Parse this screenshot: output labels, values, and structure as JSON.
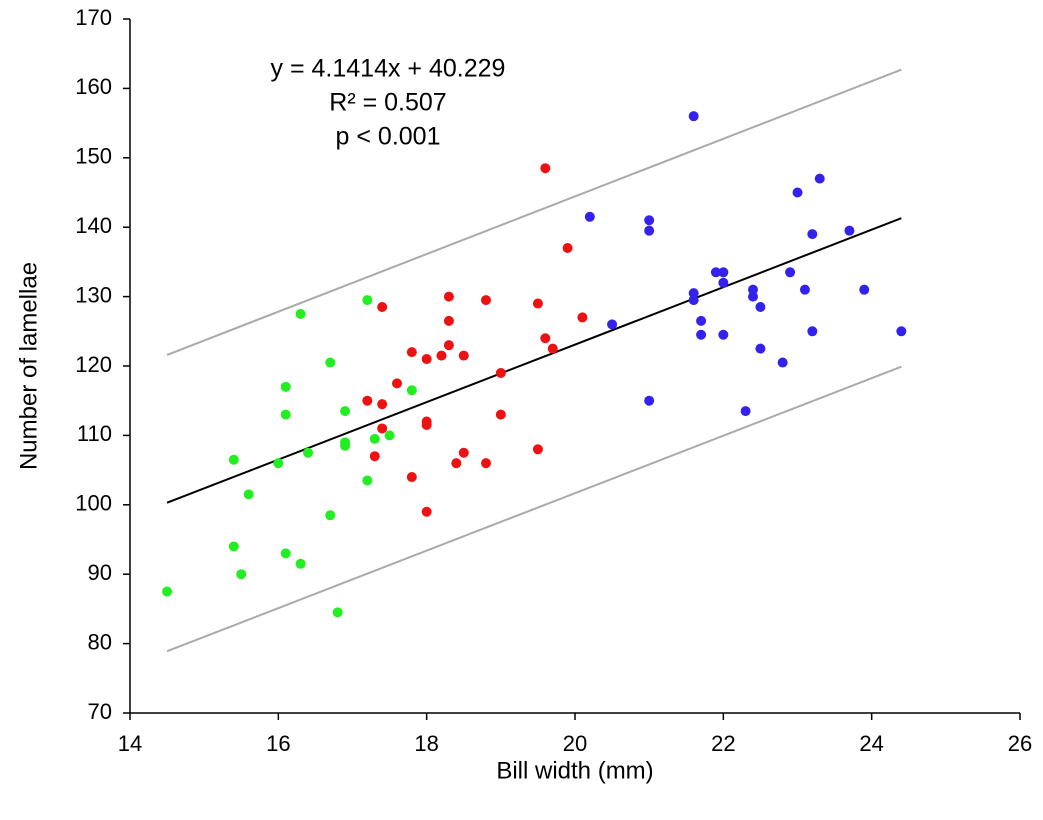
{
  "chart_data": {
    "type": "scatter",
    "xlabel": "Bill width (mm)",
    "ylabel": "Number of lamellae",
    "xlim": [
      14,
      26
    ],
    "xticks": [
      14,
      16,
      18,
      20,
      22,
      24,
      26
    ],
    "ylim": [
      70,
      170
    ],
    "yticks": [
      70,
      80,
      90,
      100,
      110,
      120,
      130,
      140,
      150,
      160,
      170
    ],
    "annotations": [
      "y = 4.1414x + 40.229",
      "R² = 0.507",
      "p < 0.001"
    ],
    "series": [
      {
        "color": "#22ee22",
        "x": [
          14.5,
          15.4,
          15.4,
          15.5,
          15.6,
          16.0,
          16.1,
          16.1,
          16.1,
          16.3,
          16.3,
          16.4,
          16.7,
          16.7,
          16.8,
          16.9,
          16.9,
          16.9,
          17.2,
          17.2,
          17.3,
          17.5,
          17.8
        ],
        "values": [
          87.5,
          106.5,
          94,
          90,
          101.5,
          106,
          117,
          113,
          93,
          127.5,
          91.5,
          107.5,
          120.5,
          98.5,
          84.5,
          113.5,
          109,
          108.5,
          129.5,
          103.5,
          109.5,
          110,
          116.5
        ]
      },
      {
        "color": "#ee1111",
        "x": [
          17.2,
          17.3,
          17.4,
          17.4,
          17.4,
          17.6,
          17.8,
          17.8,
          18.0,
          18.0,
          18.0,
          18.0,
          18.2,
          18.3,
          18.3,
          18.3,
          18.4,
          18.5,
          18.5,
          18.8,
          18.8,
          19.0,
          19.0,
          19.5,
          19.5,
          19.6,
          19.6,
          19.7,
          19.9,
          20.1
        ],
        "values": [
          115,
          107,
          128.5,
          114.5,
          111,
          117.5,
          122,
          104,
          121,
          112,
          111.5,
          99,
          121.5,
          130,
          126.5,
          123,
          106,
          121.5,
          107.5,
          129.5,
          106,
          119,
          113,
          129,
          108,
          148.5,
          124,
          122.5,
          137,
          127
        ]
      },
      {
        "color": "#3322ee",
        "x": [
          20.2,
          20.5,
          21.0,
          21.0,
          21.0,
          21.6,
          21.6,
          21.6,
          21.7,
          21.7,
          21.9,
          22.0,
          22.0,
          22.0,
          22.3,
          22.4,
          22.4,
          22.5,
          22.5,
          22.8,
          22.9,
          23.0,
          23.1,
          23.2,
          23.2,
          23.3,
          23.7,
          23.9,
          24.4
        ],
        "values": [
          141.5,
          126,
          141,
          139.5,
          115,
          156,
          130.5,
          129.5,
          126.5,
          124.5,
          133.5,
          133.5,
          132,
          124.5,
          113.5,
          131,
          130,
          128.5,
          122.5,
          120.5,
          133.5,
          145,
          131,
          139,
          125,
          147,
          139.5,
          131,
          125
        ]
      }
    ],
    "lines": [
      {
        "color": "#000000",
        "x": [
          14.5,
          24.4
        ],
        "values": [
          100.3,
          141.3
        ]
      },
      {
        "color": "#aaaaaa",
        "x": [
          14.5,
          24.4
        ],
        "values": [
          121.6,
          162.7
        ]
      },
      {
        "color": "#aaaaaa",
        "x": [
          14.5,
          24.4
        ],
        "values": [
          78.9,
          119.9
        ]
      }
    ]
  }
}
